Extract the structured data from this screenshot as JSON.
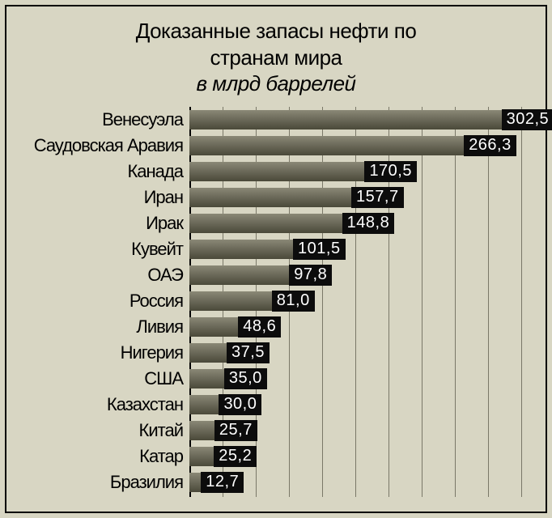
{
  "title": {
    "line1": "Доказанные запасы нефти по",
    "line2": "странам мира",
    "subtitle": "в млрд баррелей",
    "fontsize": 26,
    "color": "#000000"
  },
  "chart": {
    "type": "bar",
    "orientation": "horizontal",
    "background_color": "#d8d6c3",
    "border_color": "#000000",
    "bar_color_top": "#8a8876",
    "bar_color_bottom": "#4a4939",
    "grid_color": "#7a7868",
    "value_label_bg": "#0c0c0c",
    "value_label_fg": "#ffffff",
    "category_label_fontsize": 22,
    "value_label_fontsize": 20,
    "xmax": 320,
    "grid_step": 32,
    "categories": [
      "Венесуэла",
      "Саудовская Аравия",
      "Канада",
      "Иран",
      "Ирак",
      "Кувейт",
      "ОАЭ",
      "Россия",
      "Ливия",
      "Нигерия",
      "США",
      "Казахстан",
      "Китай",
      "Катар",
      "Бразилия"
    ],
    "values": [
      302.5,
      266.3,
      170.5,
      157.7,
      148.8,
      101.5,
      97.8,
      81.0,
      48.6,
      37.5,
      35.0,
      30.0,
      25.7,
      25.2,
      12.7
    ],
    "value_labels": [
      "302,5",
      "266,3",
      "170,5",
      "157,7",
      "148,8",
      "101,5",
      "97,8",
      "81,0",
      "48,6",
      "37,5",
      "35,0",
      "30,0",
      "25,7",
      "25,2",
      "12,7"
    ]
  }
}
